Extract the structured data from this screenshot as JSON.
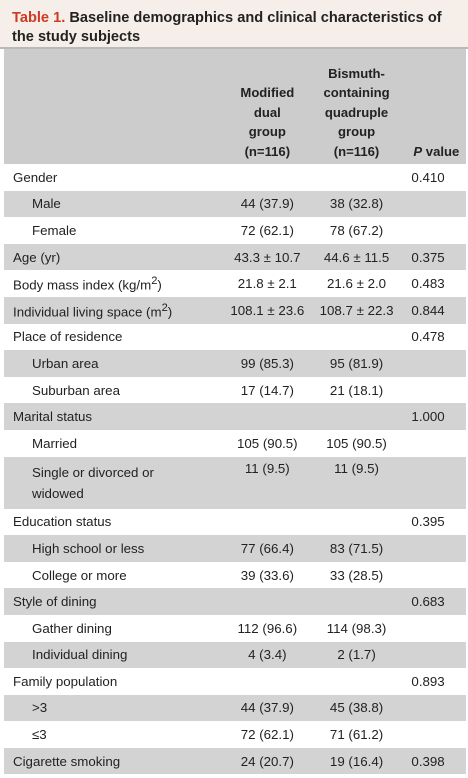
{
  "caption": {
    "number": "Table 1.",
    "title": "Baseline demographics and clinical characteristics of the study subjects"
  },
  "header": {
    "col1": [
      "Modified",
      "dual",
      "group",
      "(n=116)"
    ],
    "col2": [
      "Bismuth-",
      "containing",
      "quadruple",
      "group",
      "(n=116)"
    ],
    "p_italic": "P",
    "p_rest": " value"
  },
  "rows": [
    {
      "label": "Gender",
      "g1": "",
      "g2": "",
      "p": "0.410"
    },
    {
      "label": "Male",
      "g1": "44 (37.9)",
      "g2": "38 (32.8)",
      "p": ""
    },
    {
      "label": "Female",
      "g1": "72 (62.1)",
      "g2": "78 (67.2)",
      "p": ""
    },
    {
      "label": "Age (yr)",
      "g1": "43.3 ± 10.7",
      "g2": "44.6 ± 11.5",
      "p": "0.375"
    },
    {
      "label": "Body mass index (kg/m",
      "sup": "2",
      "label_end": ")",
      "g1": "21.8 ± 2.1",
      "g2": "21.6 ± 2.0",
      "p": "0.483"
    },
    {
      "label": "Individual living space (m",
      "sup": "2",
      "label_end": ")",
      "g1": "108.1 ± 23.6",
      "g2": "108.7 ± 22.3",
      "p": "0.844"
    },
    {
      "label": "Place of residence",
      "g1": "",
      "g2": "",
      "p": "0.478"
    },
    {
      "label": "Urban area",
      "g1": "99 (85.3)",
      "g2": "95 (81.9)",
      "p": ""
    },
    {
      "label": "Suburban area",
      "g1": "17 (14.7)",
      "g2": "21 (18.1)",
      "p": ""
    },
    {
      "label": "Marital status",
      "g1": "",
      "g2": "",
      "p": "1.000"
    },
    {
      "label": "Married",
      "g1": "105 (90.5)",
      "g2": "105 (90.5)",
      "p": ""
    },
    {
      "label": "Single or divorced or",
      "label2": "widowed",
      "g1": "11 (9.5)",
      "g2": "11 (9.5)",
      "p": ""
    },
    {
      "label": "Education status",
      "g1": "",
      "g2": "",
      "p": "0.395"
    },
    {
      "label": "High school or less",
      "g1": "77 (66.4)",
      "g2": "83 (71.5)",
      "p": ""
    },
    {
      "label": "College or more",
      "g1": "39 (33.6)",
      "g2": "33 (28.5)",
      "p": ""
    },
    {
      "label": "Style of dining",
      "g1": "",
      "g2": "",
      "p": "0.683"
    },
    {
      "label": "Gather dining",
      "g1": "112 (96.6)",
      "g2": "114 (98.3)",
      "p": ""
    },
    {
      "label": "Individual dining",
      "g1": "4 (3.4)",
      "g2": "2 (1.7)",
      "p": ""
    },
    {
      "label": "Family population",
      "g1": "",
      "g2": "",
      "p": "0.893"
    },
    {
      "label": ">3",
      "g1": "44 (37.9)",
      "g2": "45 (38.8)",
      "p": ""
    },
    {
      "label": "≤3",
      "g1": "72 (62.1)",
      "g2": "71 (61.2)",
      "p": ""
    },
    {
      "label": "Cigarette smoking",
      "g1": "24 (20.7)",
      "g2": "19 (16.4)",
      "p": "0.398"
    }
  ]
}
